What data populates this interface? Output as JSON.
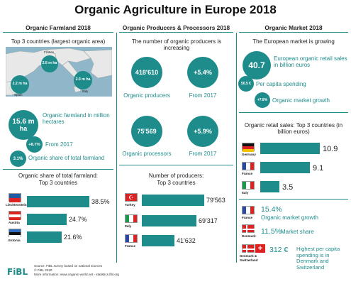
{
  "header": {
    "title": "Organic Agriculture in Europe 2018"
  },
  "farmland": {
    "heading": "Organic Farmland 2018",
    "map_title": "Top 3 countries (largest organic area)",
    "map_bubbles": [
      {
        "country": "France",
        "value": "2.0 m ha"
      },
      {
        "country": "Spain",
        "value": "2.2 m ha"
      },
      {
        "country": "Italy",
        "value": "2.0 m ha"
      }
    ],
    "farmland_value": "15.6 m ha",
    "farmland_value_main": "15.6 m",
    "farmland_value_unit": "ha",
    "farmland_label": "Organic farmland in million hectares",
    "growth_value": "+8.7%",
    "growth_label": "From 2017",
    "share_value": "3.1%",
    "share_label": "Organic share of total farmland",
    "share_title": "Organic share of total farmland:",
    "share_subtitle": "Top 3 countries",
    "share_rows": [
      {
        "country": "Liechtenstein",
        "value": "38.5%",
        "fraction": 0.385
      },
      {
        "country": "Austria",
        "value": "24.7%",
        "fraction": 0.247
      },
      {
        "country": "Estonia",
        "value": "21.6%",
        "fraction": 0.216
      }
    ]
  },
  "producers": {
    "heading": "Organic Producers & Processors 2018",
    "intro": "The number of organic producers is increasing",
    "producers_value": "418'610",
    "producers_label": "Organic producers",
    "producers_growth": "+5.4%",
    "producers_growth_label": "From 2017",
    "processors_value": "75'569",
    "processors_label": "Organic processors",
    "processors_growth": "+5.9%",
    "processors_growth_label": "From 2017",
    "top_title": "Number of producers:",
    "top_subtitle": "Top 3 countries",
    "top_rows": [
      {
        "country": "Turkey",
        "value": "79'563",
        "number": 79563
      },
      {
        "country": "Italy",
        "value": "69'317",
        "number": 69317
      },
      {
        "country": "France",
        "value": "41'632",
        "number": 41632
      }
    ]
  },
  "market": {
    "heading": "Organic Market 2018",
    "intro": "The European market is growing",
    "retail_value": "40.7",
    "retail_label": "European organic retail sales in billion euros",
    "per_capita_value": "50.5 €",
    "per_capita_label": "Per capita spending",
    "growth_value": "+7.8%",
    "growth_label": "Organic market growth",
    "sales_title": "Organic retail sales: Top 3 countries (in billion euros)",
    "sales_rows": [
      {
        "country": "Germany",
        "value": "10.9",
        "number": 10.9
      },
      {
        "country": "France",
        "value": "9.1",
        "number": 9.1
      },
      {
        "country": "Italy",
        "value": "3.5",
        "number": 3.5
      }
    ],
    "stats": [
      {
        "country": "France",
        "value": "15.4%",
        "label": "Organic market growth"
      },
      {
        "country": "Denmark",
        "value": "11.5%",
        "label": "Market share"
      },
      {
        "country": "Denmark & Switzerland",
        "value": "312 €",
        "label": "Highest per capita spending is in Denmark and Switzerland"
      }
    ]
  },
  "footer": {
    "logo": "FiBL",
    "source": "Source: FiBL survey based on national sources",
    "copyright": "© FiBL 2020",
    "more": "More information: www.organic-world.net - statistics.fibl.org"
  },
  "colors": {
    "accent": "#1f8c8c",
    "map_sea": "#8fb7c9",
    "map_land": "#e8e8e8"
  }
}
